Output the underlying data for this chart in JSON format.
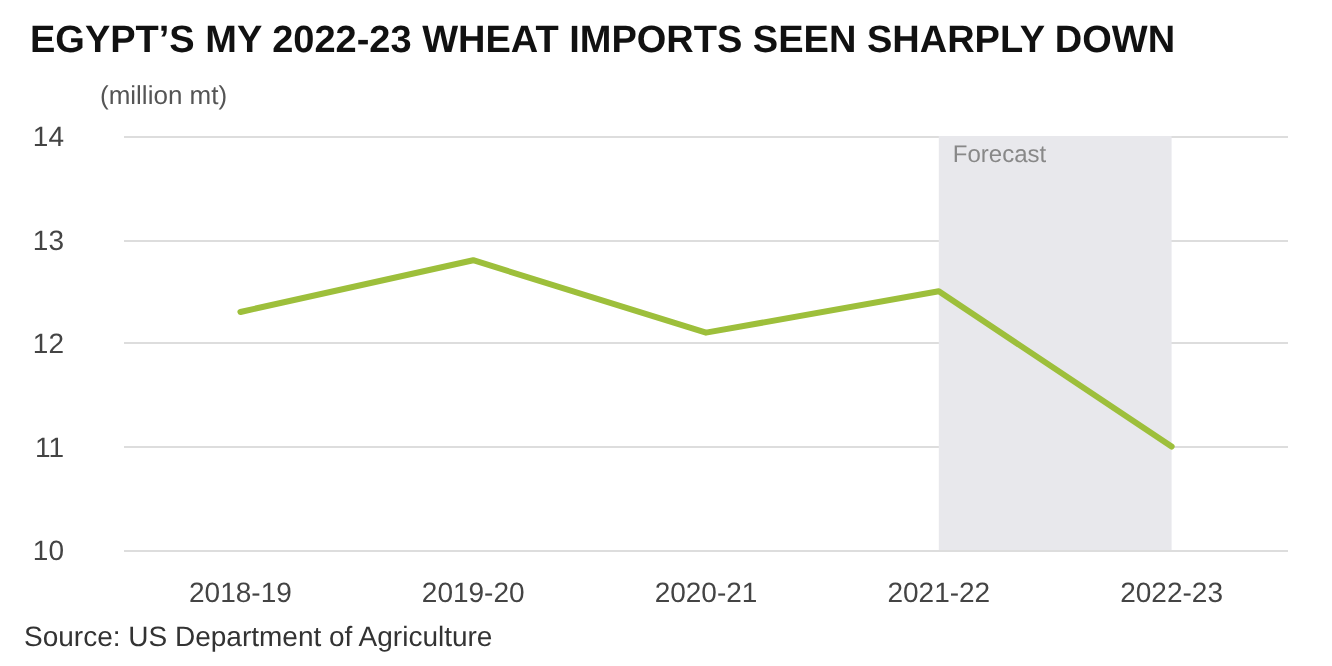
{
  "chart_data": {
    "type": "line",
    "title": "EGYPT’S MY 2022-23 WHEAT IMPORTS SEEN SHARPLY DOWN",
    "ylabel": "(million mt)",
    "categories": [
      "2018-19",
      "2019-20",
      "2020-21",
      "2021-22",
      "2022-23"
    ],
    "series": [
      {
        "color": "#9dbf3b",
        "values": [
          12.3,
          12.8,
          12.1,
          12.5,
          11.0
        ]
      }
    ],
    "ylim": [
      10,
      14
    ],
    "yticks": [
      10,
      11,
      12,
      13,
      14
    ],
    "grid": "y",
    "marker": "none",
    "line_style": "solid",
    "bands": [
      {
        "axis": "x",
        "from": "2021-22",
        "to": "2022-23",
        "label": "Forecast",
        "color": "#e8e8ec"
      }
    ],
    "annotations": [
      "Source: US Department of Agriculture"
    ]
  }
}
